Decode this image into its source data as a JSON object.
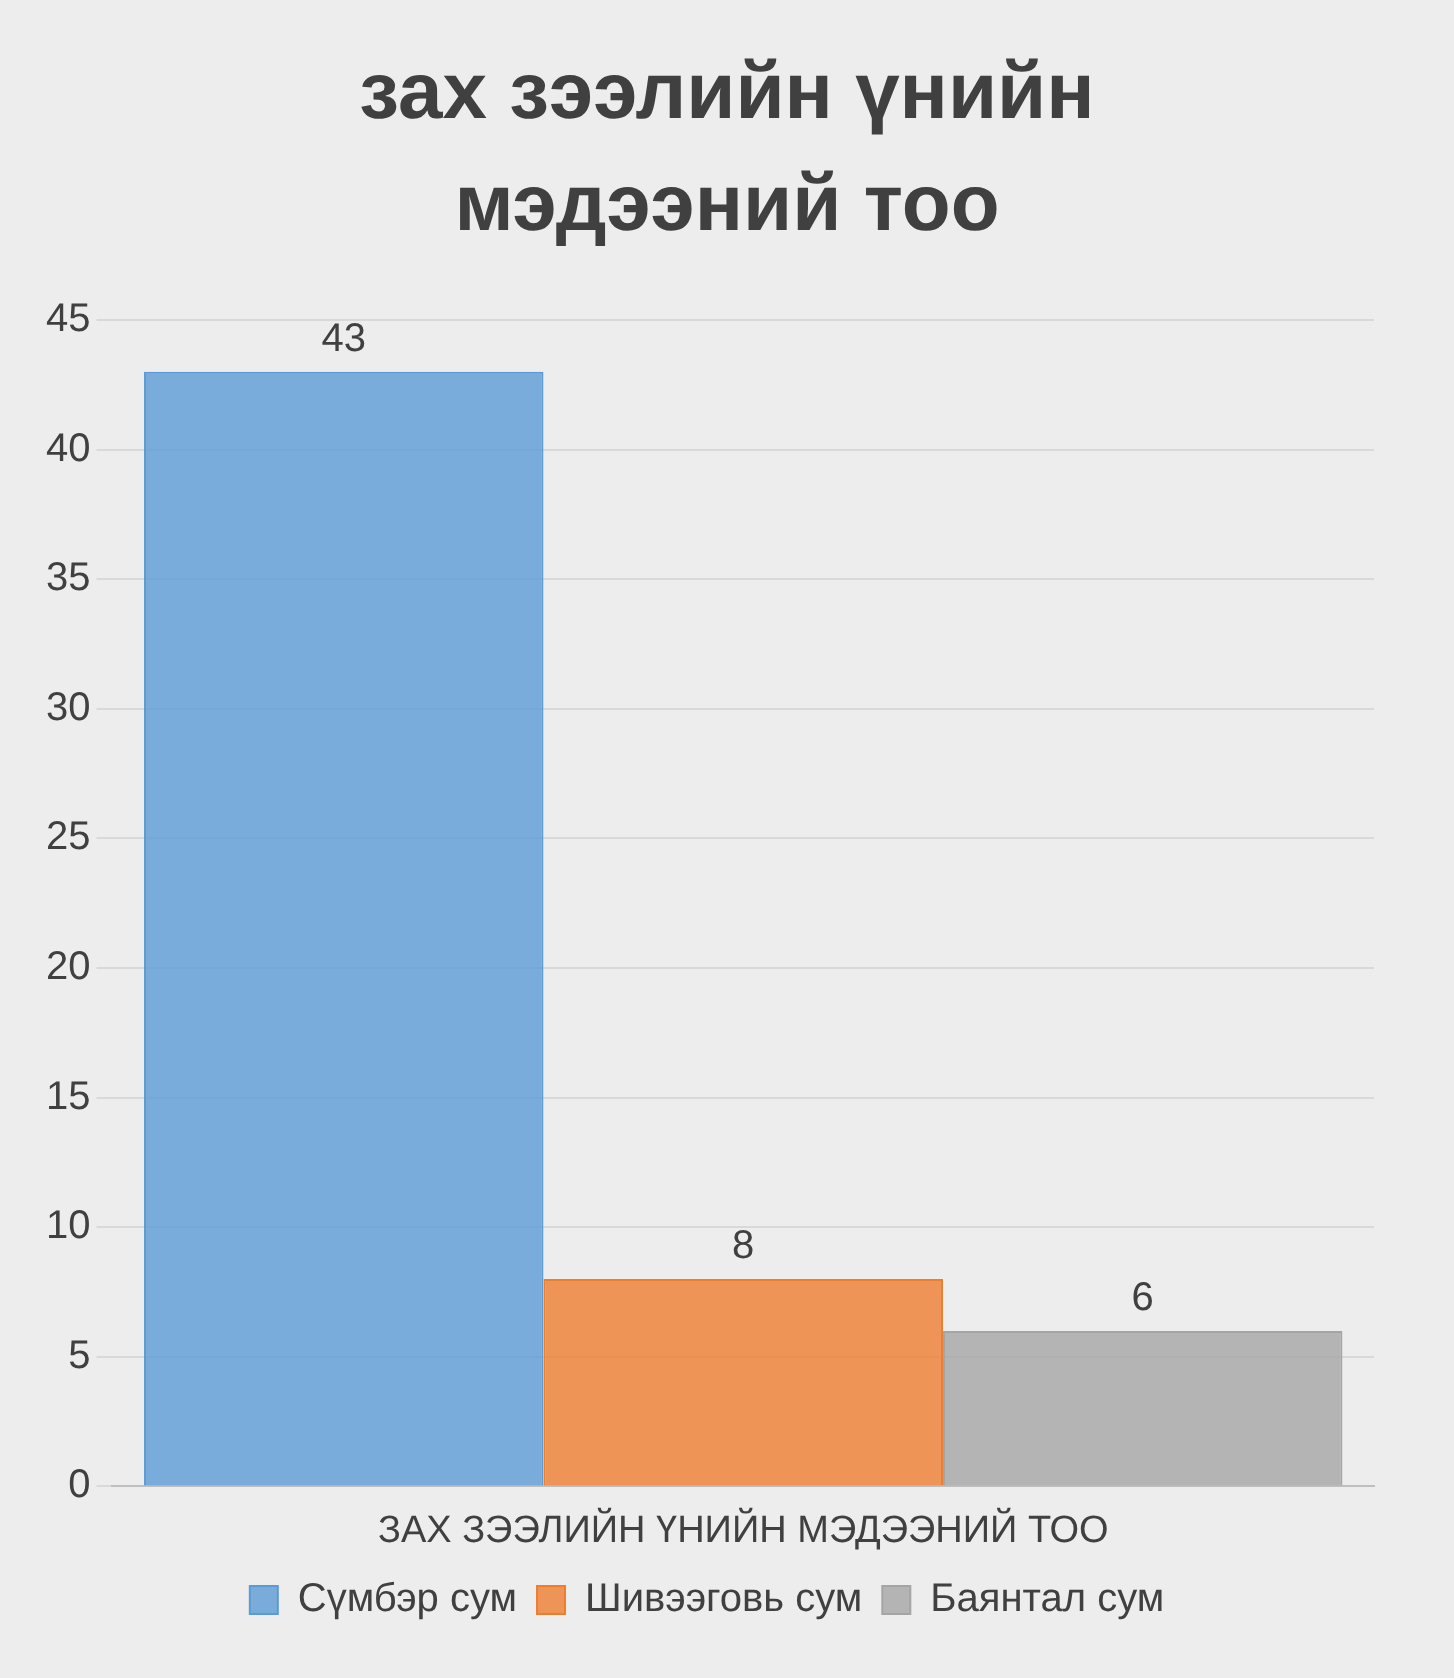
{
  "chart_data": {
    "type": "bar",
    "title": "зах зээлийн үнийн мэдээний тоо",
    "categories": [
      "ЗАХ ЗЭЭЛИЙН ҮНИЙН МЭДЭЭНИЙ ТОО"
    ],
    "series": [
      {
        "name": "Сүмбэр сум",
        "color": "#5b9bd5",
        "values": [
          43
        ]
      },
      {
        "name": "Шивээговь сум",
        "color": "#ed7d31",
        "values": [
          8
        ]
      },
      {
        "name": "Баянтал сум",
        "color": "#a5a5a5",
        "values": [
          6
        ]
      }
    ],
    "ylim": [
      0,
      45
    ],
    "yticks": [
      0,
      5,
      10,
      15,
      20,
      25,
      30,
      35,
      40,
      45
    ],
    "grid": "y",
    "legend": "bottom",
    "data_labels": true
  }
}
